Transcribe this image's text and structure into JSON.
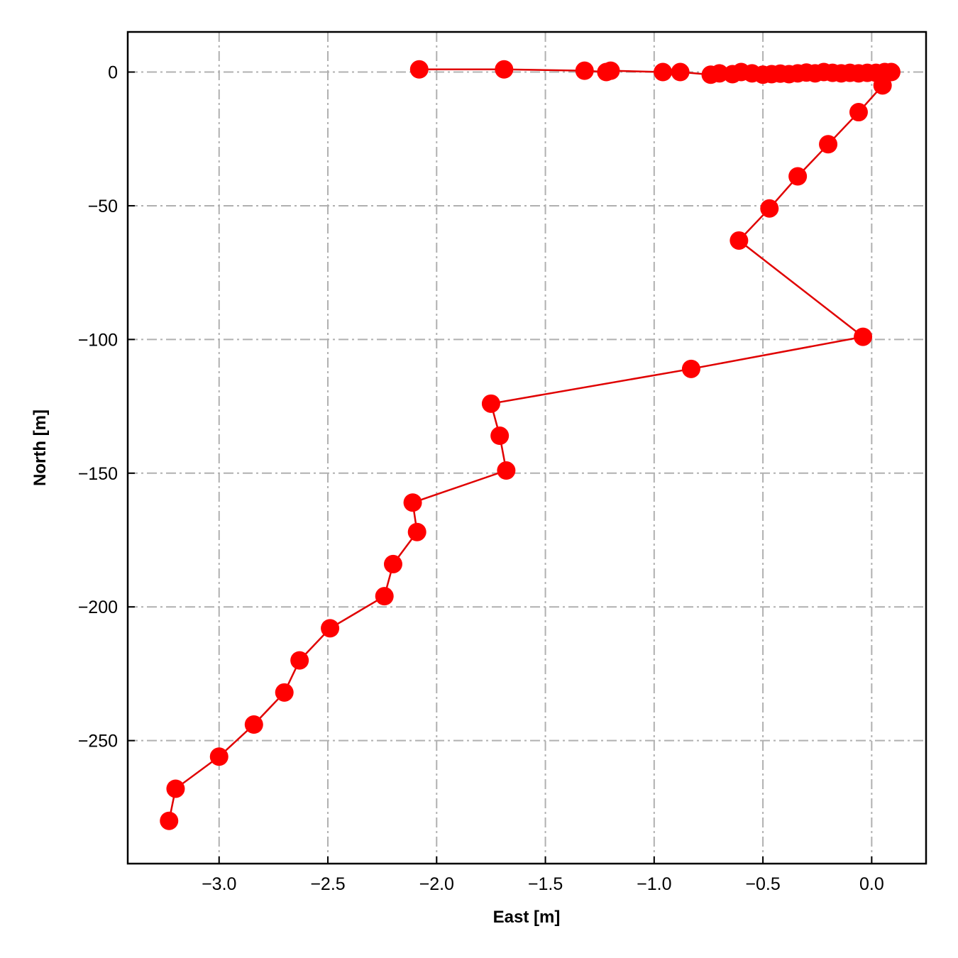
{
  "chart_data": {
    "type": "line",
    "title": "",
    "xlabel": "East [m]",
    "ylabel": "North [m]",
    "xlim": [
      -3.42,
      0.25
    ],
    "ylim": [
      -296,
      15
    ],
    "xticks": [
      -3.0,
      -2.5,
      -2.0,
      -1.5,
      -1.0,
      -0.5,
      0.0
    ],
    "xtick_labels": [
      "−3.0",
      "−2.5",
      "−2.0",
      "−1.5",
      "−1.0",
      "−0.5",
      "0.0"
    ],
    "yticks": [
      0,
      -50,
      -100,
      -150,
      -200,
      -250
    ],
    "ytick_labels": [
      "0",
      "−50",
      "−100",
      "−150",
      "−200",
      "−250"
    ],
    "grid": true,
    "colors": {
      "series": "#ff0000",
      "line": "#e00000",
      "grid": "#b0b0b0"
    },
    "series": [
      {
        "marker": "circle",
        "x": [
          -2.08,
          -1.69,
          -1.32,
          -1.22,
          -1.2,
          -0.96,
          -0.88,
          -0.74,
          -0.7,
          -0.64,
          -0.6,
          -0.55,
          -0.5,
          -0.46,
          -0.42,
          -0.38,
          -0.34,
          -0.3,
          -0.26,
          -0.22,
          -0.18,
          -0.14,
          -0.1,
          -0.06,
          -0.02,
          0.02,
          0.06,
          0.09,
          0.05,
          -0.06,
          -0.2,
          -0.34,
          -0.47,
          -0.61,
          -0.04,
          -0.83,
          -1.75,
          -1.71,
          -1.68,
          -2.11,
          -2.09,
          -2.2,
          -2.24,
          -2.49,
          -2.63,
          -2.7,
          -2.84,
          -3.0,
          -3.2,
          -3.23
        ],
        "y": [
          1,
          1,
          0.5,
          0,
          0.5,
          0,
          0,
          -1,
          -0.5,
          -0.8,
          0,
          -0.5,
          -1,
          -0.8,
          -0.6,
          -0.8,
          -0.5,
          -0.2,
          -0.5,
          0,
          -0.3,
          -0.5,
          -0.3,
          -0.5,
          -0.3,
          -0.3,
          0,
          0,
          -5,
          -15,
          -27,
          -39,
          -51,
          -63,
          -99,
          -111,
          -124,
          -136,
          -149,
          -161,
          -172,
          -184,
          -196,
          -208,
          -220,
          -232,
          -244,
          -256,
          -268,
          -280
        ]
      }
    ]
  }
}
